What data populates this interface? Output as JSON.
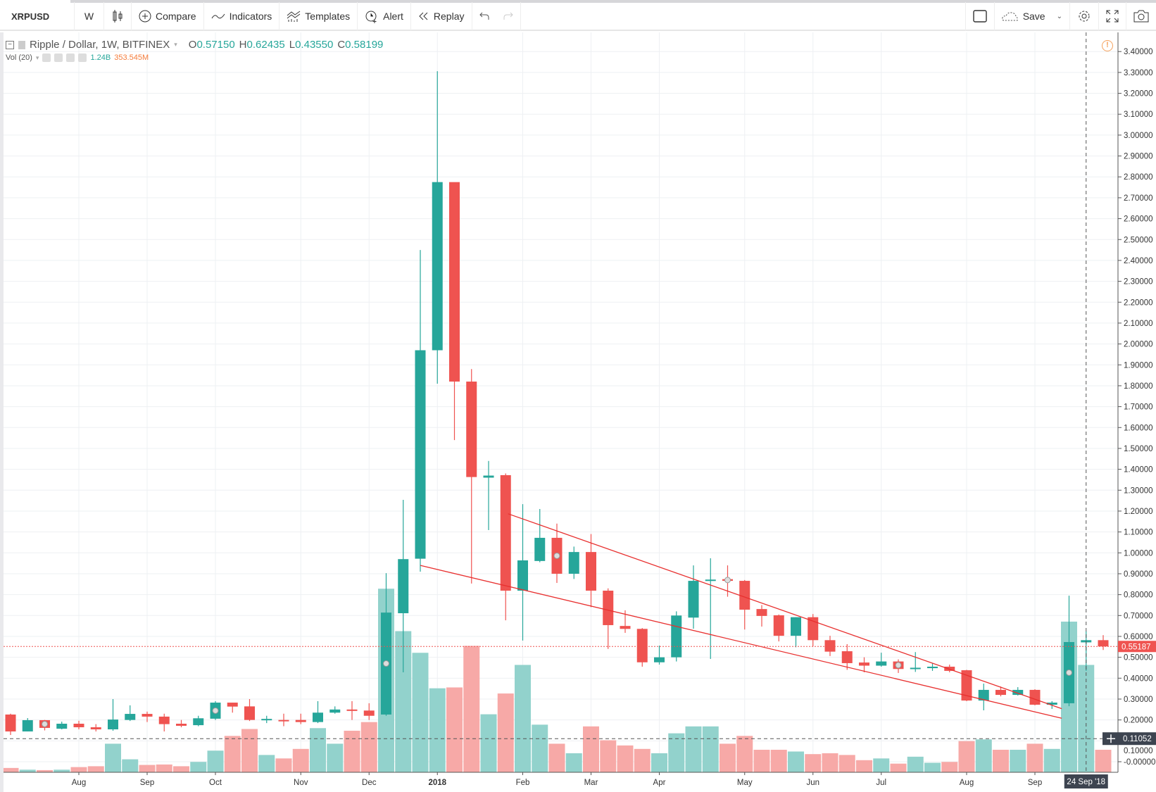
{
  "toolbar": {
    "symbol": "XRPUSD",
    "interval": "W",
    "compare": "Compare",
    "indicators": "Indicators",
    "templates": "Templates",
    "alert": "Alert",
    "replay": "Replay",
    "save": "Save"
  },
  "legend": {
    "title": "Ripple / Dollar, 1W, BITFINEX",
    "o_label": "O",
    "o": "0.57150",
    "h_label": "H",
    "h": "0.62435",
    "l_label": "L",
    "l": "0.43550",
    "c_label": "C",
    "c": "0.58199",
    "vol_label": "Vol (20)",
    "vol_value": "1.24B",
    "vol_ma": "353.545M"
  },
  "colors": {
    "up": "#26a69a",
    "down": "#ef5350",
    "vol_up": "#92d2cc",
    "vol_down": "#f7a9a7",
    "trendline": "#e8302f",
    "ma_text": "#f57c3b"
  },
  "chart_data": {
    "type": "candlestick",
    "interval": "1W",
    "ylim": [
      0,
      3.4
    ],
    "y_ticks": [
      "3.40000",
      "3.30000",
      "3.20000",
      "3.10000",
      "3.00000",
      "2.90000",
      "2.80000",
      "2.70000",
      "2.60000",
      "2.50000",
      "2.40000",
      "2.30000",
      "2.20000",
      "2.10000",
      "2.00000",
      "1.90000",
      "1.80000",
      "1.70000",
      "1.60000",
      "1.50000",
      "1.40000",
      "1.30000",
      "1.20000",
      "1.10000",
      "1.00000",
      "0.90000",
      "0.80000",
      "0.70000",
      "0.60000",
      "0.50000",
      "0.40000",
      "0.30000",
      "0.20000",
      "0.10000",
      "-0.00000"
    ],
    "x_ticks": [
      {
        "label": "Aug",
        "date": "2017-08-07"
      },
      {
        "label": "Sep",
        "date": "2017-09-04"
      },
      {
        "label": "Oct",
        "date": "2017-10-02"
      },
      {
        "label": "Nov",
        "date": "2017-11-06"
      },
      {
        "label": "Dec",
        "date": "2017-12-04"
      },
      {
        "label": "2018",
        "date": "2018-01-01"
      },
      {
        "label": "Feb",
        "date": "2018-02-05"
      },
      {
        "label": "Mar",
        "date": "2018-03-05"
      },
      {
        "label": "Apr",
        "date": "2018-04-02"
      },
      {
        "label": "May",
        "date": "2018-05-07"
      },
      {
        "label": "Jun",
        "date": "2018-06-04"
      },
      {
        "label": "Jul",
        "date": "2018-07-02"
      },
      {
        "label": "Aug",
        "date": "2018-08-06"
      },
      {
        "label": "Sep",
        "date": "2018-09-03"
      }
    ],
    "columns": [
      "date",
      "open",
      "high",
      "low",
      "close",
      "volume_B"
    ],
    "candles": [
      [
        "2017-07-10",
        0.226,
        0.23,
        0.128,
        0.145,
        0.05
      ],
      [
        "2017-07-17",
        0.145,
        0.209,
        0.145,
        0.199,
        0.03
      ],
      [
        "2017-07-24",
        0.199,
        0.2,
        0.15,
        0.162,
        0.025
      ],
      [
        "2017-07-31",
        0.158,
        0.192,
        0.155,
        0.182,
        0.03
      ],
      [
        "2017-08-07",
        0.182,
        0.196,
        0.155,
        0.165,
        0.06
      ],
      [
        "2017-08-14",
        0.165,
        0.18,
        0.145,
        0.155,
        0.07
      ],
      [
        "2017-08-21",
        0.155,
        0.3,
        0.148,
        0.202,
        0.33
      ],
      [
        "2017-08-28",
        0.2,
        0.27,
        0.195,
        0.229,
        0.15
      ],
      [
        "2017-09-04",
        0.229,
        0.24,
        0.19,
        0.216,
        0.085
      ],
      [
        "2017-09-11",
        0.216,
        0.23,
        0.145,
        0.18,
        0.09
      ],
      [
        "2017-09-18",
        0.182,
        0.2,
        0.165,
        0.172,
        0.07
      ],
      [
        "2017-09-25",
        0.175,
        0.22,
        0.17,
        0.208,
        0.12
      ],
      [
        "2017-10-02",
        0.206,
        0.29,
        0.2,
        0.283,
        0.25
      ],
      [
        "2017-10-09",
        0.283,
        0.283,
        0.235,
        0.264,
        0.42
      ],
      [
        "2017-10-16",
        0.265,
        0.3,
        0.195,
        0.2,
        0.5
      ],
      [
        "2017-10-23",
        0.2,
        0.22,
        0.185,
        0.205,
        0.2
      ],
      [
        "2017-10-30",
        0.2,
        0.23,
        0.17,
        0.195,
        0.16
      ],
      [
        "2017-11-06",
        0.2,
        0.23,
        0.18,
        0.19,
        0.27
      ],
      [
        "2017-11-13",
        0.19,
        0.29,
        0.185,
        0.235,
        0.51
      ],
      [
        "2017-11-20",
        0.235,
        0.265,
        0.23,
        0.25,
        0.33
      ],
      [
        "2017-11-27",
        0.25,
        0.29,
        0.2,
        0.245,
        0.48
      ],
      [
        "2017-12-04",
        0.245,
        0.28,
        0.2,
        0.22,
        0.58
      ],
      [
        "2017-12-11",
        0.226,
        0.903,
        0.22,
        0.714,
        2.12
      ],
      [
        "2017-12-18",
        0.711,
        1.254,
        0.428,
        0.97,
        1.63
      ],
      [
        "2017-12-25",
        0.972,
        2.45,
        0.91,
        1.97,
        1.38
      ],
      [
        "2018-01-01",
        1.97,
        3.306,
        1.81,
        2.775,
        0.97
      ],
      [
        "2018-01-08",
        2.775,
        2.77,
        1.54,
        1.82,
        0.98
      ],
      [
        "2018-01-15",
        1.82,
        1.88,
        0.853,
        1.363,
        1.46
      ],
      [
        "2018-01-22",
        1.36,
        1.44,
        1.109,
        1.37,
        0.67
      ],
      [
        "2018-01-29",
        1.372,
        1.38,
        0.677,
        0.819,
        0.91
      ],
      [
        "2018-02-05",
        0.819,
        1.233,
        0.58,
        0.964,
        1.24
      ],
      [
        "2018-02-12",
        0.961,
        1.21,
        0.955,
        1.072,
        0.55
      ],
      [
        "2018-02-19",
        1.072,
        1.14,
        0.856,
        0.9,
        0.33
      ],
      [
        "2018-02-26",
        0.9,
        1.03,
        0.875,
        1.004,
        0.22
      ],
      [
        "2018-03-05",
        1.004,
        1.09,
        0.74,
        0.819,
        0.53
      ],
      [
        "2018-03-12",
        0.819,
        0.83,
        0.54,
        0.654,
        0.37
      ],
      [
        "2018-03-19",
        0.65,
        0.725,
        0.617,
        0.636,
        0.31
      ],
      [
        "2018-03-26",
        0.636,
        0.64,
        0.455,
        0.476,
        0.27
      ],
      [
        "2018-04-02",
        0.476,
        0.556,
        0.465,
        0.5,
        0.22
      ],
      [
        "2018-04-09",
        0.5,
        0.72,
        0.48,
        0.7,
        0.45
      ],
      [
        "2018-04-16",
        0.69,
        0.94,
        0.637,
        0.866,
        0.53
      ],
      [
        "2018-04-23",
        0.866,
        0.974,
        0.492,
        0.872,
        0.53
      ],
      [
        "2018-04-30",
        0.874,
        0.94,
        0.79,
        0.866,
        0.33
      ],
      [
        "2018-05-07",
        0.866,
        0.87,
        0.633,
        0.728,
        0.42
      ],
      [
        "2018-05-14",
        0.731,
        0.75,
        0.647,
        0.698,
        0.26
      ],
      [
        "2018-05-21",
        0.701,
        0.705,
        0.576,
        0.603,
        0.26
      ],
      [
        "2018-05-28",
        0.603,
        0.692,
        0.548,
        0.692,
        0.24
      ],
      [
        "2018-06-04",
        0.692,
        0.707,
        0.552,
        0.582,
        0.21
      ],
      [
        "2018-06-11",
        0.582,
        0.603,
        0.506,
        0.527,
        0.22
      ],
      [
        "2018-06-18",
        0.529,
        0.563,
        0.44,
        0.472,
        0.2
      ],
      [
        "2018-06-25",
        0.475,
        0.5,
        0.428,
        0.46,
        0.14
      ],
      [
        "2018-07-02",
        0.46,
        0.522,
        0.455,
        0.48,
        0.16
      ],
      [
        "2018-07-09",
        0.48,
        0.49,
        0.425,
        0.444,
        0.1
      ],
      [
        "2018-07-16",
        0.444,
        0.525,
        0.43,
        0.45,
        0.18
      ],
      [
        "2018-07-23",
        0.448,
        0.47,
        0.435,
        0.455,
        0.11
      ],
      [
        "2018-07-30",
        0.455,
        0.465,
        0.428,
        0.435,
        0.12
      ],
      [
        "2018-08-06",
        0.438,
        0.44,
        0.29,
        0.293,
        0.36
      ],
      [
        "2018-08-13",
        0.293,
        0.374,
        0.246,
        0.344,
        0.38
      ],
      [
        "2018-08-20",
        0.344,
        0.36,
        0.313,
        0.32,
        0.26
      ],
      [
        "2018-08-27",
        0.32,
        0.357,
        0.317,
        0.344,
        0.26
      ],
      [
        "2018-09-03",
        0.344,
        0.347,
        0.27,
        0.273,
        0.33
      ],
      [
        "2018-09-10",
        0.273,
        0.29,
        0.253,
        0.283,
        0.27
      ],
      [
        "2018-09-17",
        0.28,
        0.795,
        0.266,
        0.573,
        1.74
      ],
      [
        "2018-09-24",
        0.5715,
        0.62435,
        0.4355,
        0.58199,
        1.24
      ],
      [
        "2018-10-01",
        0.582,
        0.606,
        0.535,
        0.552,
        0.26
      ]
    ],
    "event_markers": [
      "2017-07-24",
      "2017-10-02",
      "2017-12-11",
      "2018-02-19",
      "2018-04-30",
      "2018-07-09",
      "2018-09-17"
    ],
    "trendlines": [
      {
        "from": [
          "2018-01-30",
          1.187
        ],
        "to": [
          "2018-09-14",
          0.254
        ]
      },
      {
        "from": [
          "2017-12-25",
          0.94
        ],
        "to": [
          "2018-09-14",
          0.208
        ]
      }
    ],
    "last_price": "0.55187",
    "crosshair": {
      "date": "2018-09-24",
      "date_label": "24 Sep '18",
      "price_label": "0.11052",
      "price": 0.11052
    }
  }
}
